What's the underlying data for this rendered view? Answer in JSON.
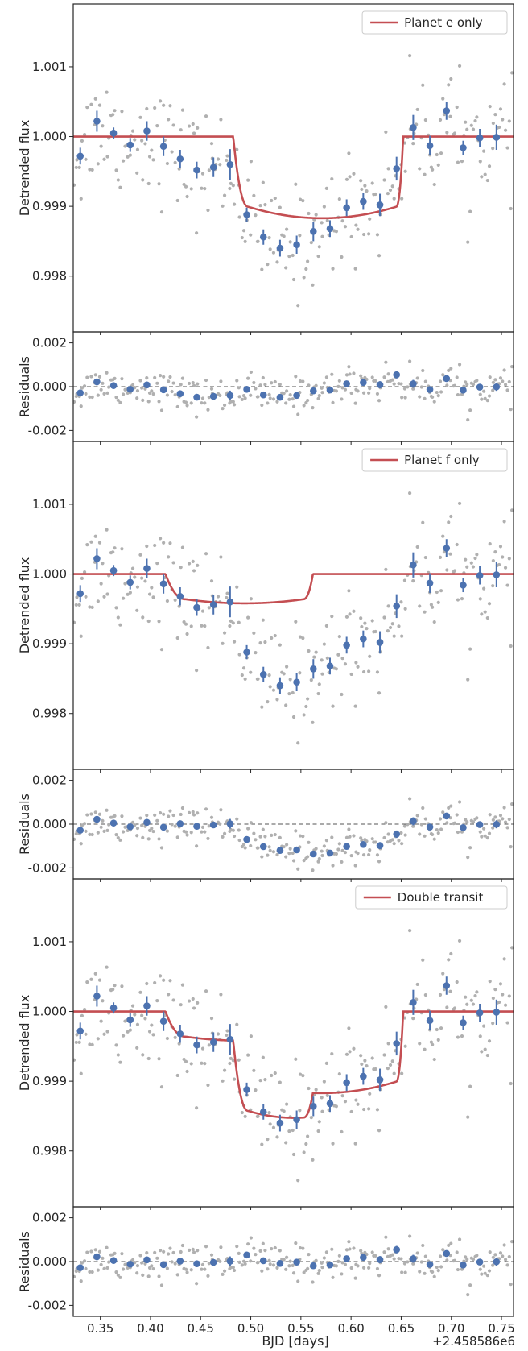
{
  "figure": {
    "xlabel": "BJD [days]",
    "x_offset_text": "+2.458586e6"
  },
  "chart_data": [
    {
      "type": "scatter",
      "panel": "flux",
      "ylabel": "Detrended flux",
      "ylim": [
        0.9972,
        1.0019
      ],
      "xlim": [
        0.323,
        0.762
      ],
      "yticks": [
        0.998,
        0.999,
        1.0,
        1.001
      ],
      "ytick_labels": [
        "0.998",
        "0.999",
        "1.000",
        "1.001"
      ],
      "xticks": [
        0.35,
        0.4,
        0.45,
        0.5,
        0.55,
        0.6,
        0.65,
        0.7,
        0.75
      ],
      "model": {
        "name": "Planet e only",
        "color": "#c44e52",
        "transits": [
          "e"
        ]
      },
      "legend": "top-right"
    },
    {
      "type": "scatter",
      "panel": "residuals",
      "ylabel": "Residuals",
      "ylim": [
        -0.0025,
        0.0025
      ],
      "yticks": [
        -0.002,
        0.0,
        0.002
      ],
      "ytick_labels": [
        "-0.002",
        "0.000",
        "0.002"
      ],
      "residual_model": [
        "e"
      ]
    },
    {
      "type": "scatter",
      "panel": "flux",
      "ylabel": "Detrended flux",
      "ylim": [
        0.9972,
        1.0019
      ],
      "yticks": [
        0.998,
        0.999,
        1.0,
        1.001
      ],
      "ytick_labels": [
        "0.998",
        "0.999",
        "1.000",
        "1.001"
      ],
      "model": {
        "name": "Planet f only",
        "color": "#c44e52",
        "transits": [
          "f"
        ]
      },
      "legend": "top-right"
    },
    {
      "type": "scatter",
      "panel": "residuals",
      "ylabel": "Residuals",
      "ylim": [
        -0.0025,
        0.0025
      ],
      "yticks": [
        -0.002,
        0.0,
        0.002
      ],
      "ytick_labels": [
        "-0.002",
        "0.000",
        "0.002"
      ],
      "residual_model": [
        "f"
      ]
    },
    {
      "type": "scatter",
      "panel": "flux",
      "ylabel": "Detrended flux",
      "ylim": [
        0.9972,
        1.0019
      ],
      "yticks": [
        0.998,
        0.999,
        1.0,
        1.001
      ],
      "ytick_labels": [
        "0.998",
        "0.999",
        "1.000",
        "1.001"
      ],
      "model": {
        "name": "Double transit",
        "color": "#c44e52",
        "transits": [
          "e",
          "f"
        ]
      },
      "legend": "top-right"
    },
    {
      "type": "scatter",
      "panel": "residuals",
      "ylabel": "Residuals",
      "ylim": [
        -0.0025,
        0.0025
      ],
      "yticks": [
        -0.002,
        0.0,
        0.002
      ],
      "ytick_labels": [
        "-0.002",
        "0.000",
        "0.002"
      ],
      "residual_model": [
        "e",
        "f"
      ]
    }
  ],
  "transit_models": {
    "e": {
      "t_start": 0.4825,
      "t_full_start": 0.4975,
      "t_full_end": 0.645,
      "t_end": 0.652,
      "depth": 0.00117
    },
    "f": {
      "t_start": 0.415,
      "t_full_start": 0.435,
      "t_full_end": 0.5525,
      "t_end": 0.562,
      "depth": 0.00042
    }
  },
  "binned_data": {
    "x": [
      0.33,
      0.3466,
      0.3632,
      0.3798,
      0.3964,
      0.413,
      0.4296,
      0.4462,
      0.4628,
      0.4794,
      0.496,
      0.5126,
      0.5292,
      0.5458,
      0.5624,
      0.579,
      0.5956,
      0.6122,
      0.6288,
      0.6454,
      0.662,
      0.6786,
      0.6952,
      0.7118,
      0.7284,
      0.745
    ],
    "flux": [
      0.99972,
      1.00022,
      1.00005,
      0.99988,
      1.00008,
      0.99986,
      0.99968,
      0.99952,
      0.99956,
      0.9996,
      0.99888,
      0.99856,
      0.9984,
      0.99845,
      0.99864,
      0.99868,
      0.99898,
      0.99907,
      0.99902,
      0.99954,
      1.00013,
      0.99987,
      1.00037,
      0.99984,
      0.99998,
      0.99999
    ],
    "err": [
      0.00012,
      0.00015,
      8e-05,
      0.0001,
      0.00014,
      0.00014,
      0.00013,
      0.00012,
      0.00014,
      0.00022,
      0.0001,
      0.00011,
      0.00012,
      0.00013,
      0.00014,
      0.00012,
      0.00012,
      0.00012,
      0.00016,
      0.00017,
      0.00018,
      0.00014,
      0.00013,
      0.0001,
      0.00013,
      0.00018
    ]
  },
  "raw_data_style": {
    "color": "#b0b0b0",
    "count": 260,
    "scatter": 0.0004
  },
  "colors": {
    "binned": "#4c72b0",
    "model": "#c44e52",
    "raw": "#b0b0b0",
    "axis": "#262626",
    "zero_line": "#555555"
  }
}
